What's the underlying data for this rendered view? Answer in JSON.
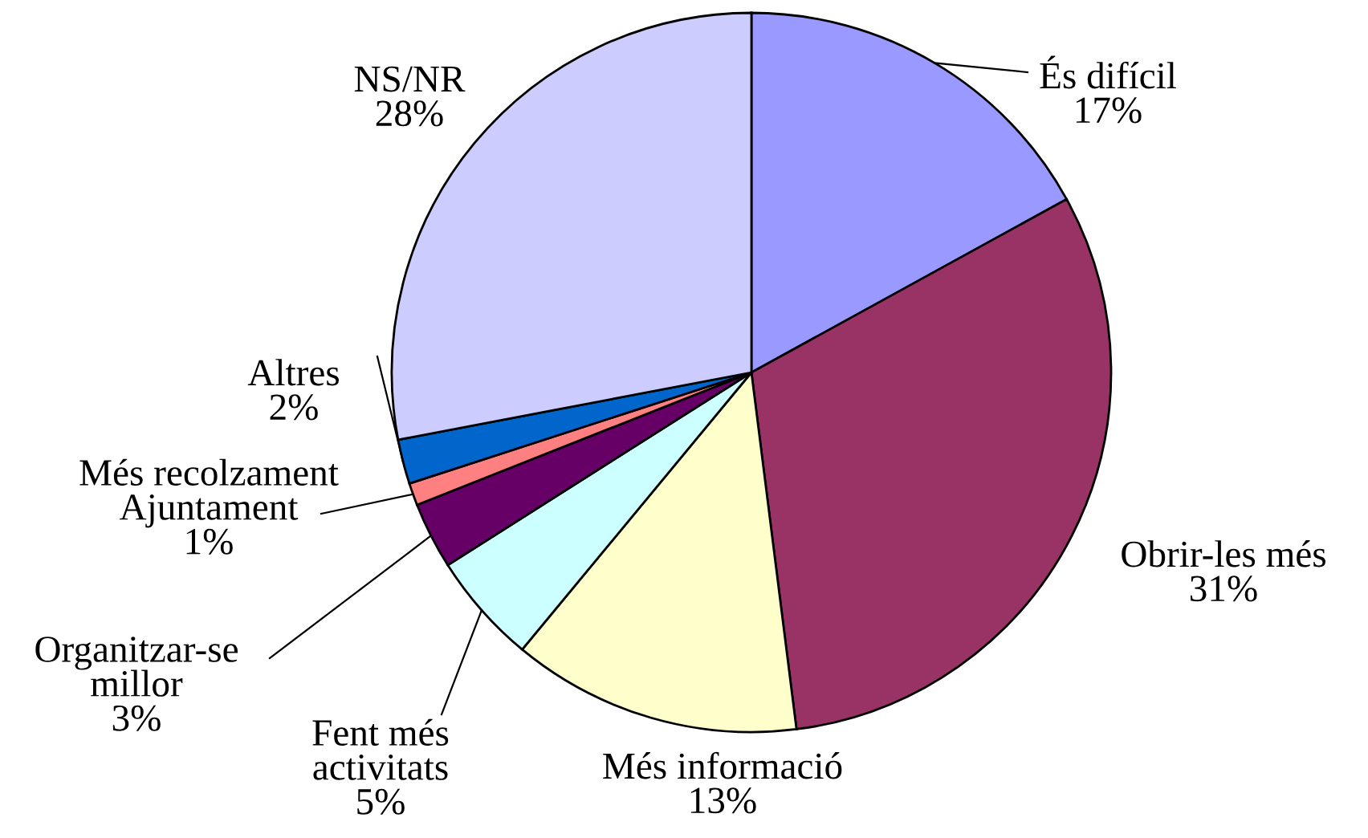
{
  "chart_data": {
    "type": "pie",
    "categories": [
      "És difícil",
      "Obrir-les més",
      "Més informació",
      "Fent més\nactivitats",
      "Organitzar-se\nmillor",
      "Més recolzament\nAjuntament",
      "Altres",
      "NS/NR"
    ],
    "values": [
      17,
      31,
      13,
      5,
      3,
      1,
      2,
      28
    ],
    "colors": [
      "#9999ff",
      "#993366",
      "#ffffcc",
      "#ccffff",
      "#660066",
      "#ff8080",
      "#0066cc",
      "#ccccff"
    ],
    "value_labels": [
      "17%",
      "31%",
      "13%",
      "5%",
      "3%",
      "1%",
      "2%",
      "28%"
    ]
  }
}
